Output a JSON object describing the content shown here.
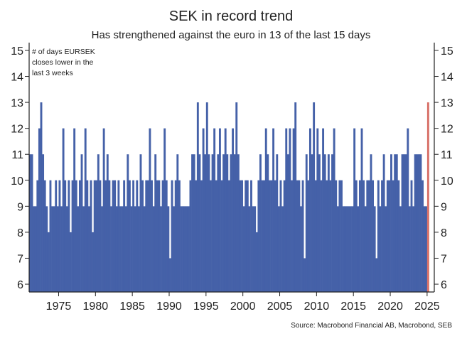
{
  "chart_data": {
    "type": "bar",
    "title": "SEK in record trend",
    "subtitle": "Has strengthened against the euro in 13 of the last 15 days",
    "annotation": "# of days EURSEK closes lower in the last 3 weeks",
    "annotation_lines": [
      "# of days EURSEK",
      "closes lower in the",
      "last 3 weeks"
    ],
    "source": "Source: Macrobond Financial AB, Macrobond, SEB",
    "x_start": 1971.0,
    "x_step": 0.25,
    "xlim": [
      1971,
      2025.3
    ],
    "ylim": [
      5.7,
      15.3
    ],
    "y_ticks": [
      6,
      7,
      8,
      9,
      10,
      11,
      12,
      13,
      14,
      15
    ],
    "x_ticks": [
      1975,
      1980,
      1985,
      1990,
      1995,
      2000,
      2005,
      2010,
      2015,
      2020,
      2025
    ],
    "grid": false,
    "colors": {
      "series": "#4561a8",
      "highlight": "#d9736b",
      "axis": "#222222"
    },
    "values": [
      11,
      11,
      9,
      9,
      10,
      12,
      13,
      11,
      10,
      9,
      8,
      10,
      9,
      9,
      10,
      9,
      10,
      9,
      12,
      10,
      9,
      10,
      8,
      10,
      12,
      10,
      9,
      10,
      11,
      9,
      12,
      10,
      9,
      10,
      8,
      10,
      10,
      11,
      10,
      9,
      12,
      10,
      11,
      10,
      9,
      10,
      10,
      9,
      10,
      9,
      9,
      10,
      9,
      11,
      10,
      9,
      10,
      9,
      10,
      9,
      11,
      10,
      9,
      10,
      10,
      12,
      10,
      9,
      11,
      10,
      10,
      9,
      10,
      12,
      10,
      9,
      7,
      10,
      9,
      10,
      11,
      10,
      9,
      9,
      9,
      9,
      9,
      10,
      11,
      11,
      10,
      13,
      11,
      10,
      12,
      11,
      13,
      11,
      10,
      11,
      12,
      10,
      11,
      12,
      10,
      11,
      12,
      11,
      10,
      11,
      12,
      11,
      13,
      11,
      10,
      10,
      9,
      10,
      10,
      9,
      10,
      9,
      9,
      8,
      10,
      11,
      10,
      10,
      12,
      11,
      10,
      10,
      12,
      10,
      11,
      9,
      10,
      9,
      10,
      12,
      11,
      12,
      10,
      12,
      13,
      10,
      10,
      9,
      10,
      7,
      11,
      10,
      12,
      11,
      13,
      10,
      12,
      11,
      10,
      12,
      11,
      10,
      11,
      10,
      11,
      12,
      10,
      9,
      10,
      10,
      9,
      9,
      9,
      9,
      9,
      9,
      12,
      10,
      9,
      10,
      12,
      10,
      9,
      10,
      10,
      11,
      10,
      9,
      7,
      10,
      9,
      10,
      11,
      9,
      10,
      10,
      11,
      10,
      11,
      11,
      10,
      9,
      11,
      11,
      11,
      12,
      9,
      10,
      9,
      11,
      11,
      11,
      11,
      10,
      9,
      9
    ],
    "latest": {
      "x": 2025.0,
      "value": 13
    }
  }
}
